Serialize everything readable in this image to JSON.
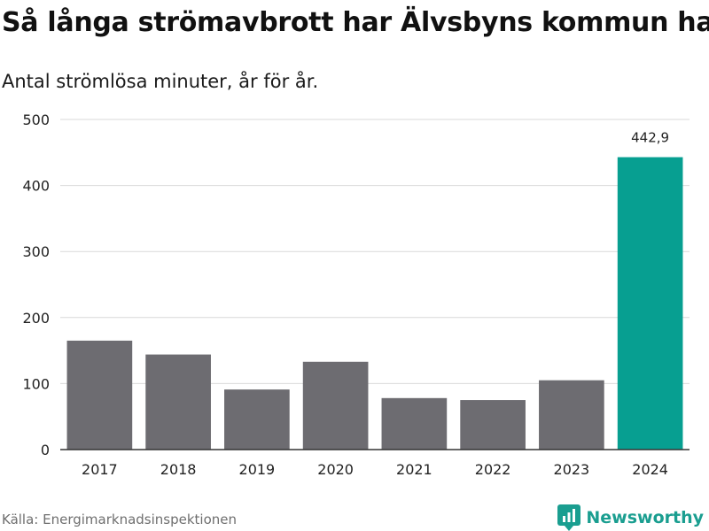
{
  "title": "Så långa strömavbrott har Älvsbyns kommun haft",
  "subtitle": "Antal strömlösa minuter, år för år.",
  "source": "Källa: Energimarknadsinspektionen",
  "brand": "Newsworthy",
  "colors": {
    "bar": "#6d6c71",
    "highlight": "#079f91",
    "grid": "#d9d9d9",
    "axis": "#333333",
    "brand": "#1a9e90"
  },
  "chart_data": {
    "type": "bar",
    "categories": [
      "2017",
      "2018",
      "2019",
      "2020",
      "2021",
      "2022",
      "2023",
      "2024"
    ],
    "values": [
      165,
      144,
      91,
      133,
      78,
      75,
      105,
      442.9
    ],
    "highlight_index": 7,
    "data_labels": [
      "",
      "",
      "",
      "",
      "",
      "",
      "",
      "442,9"
    ],
    "ylim": [
      0,
      500
    ],
    "yticks": [
      0,
      100,
      200,
      300,
      400,
      500
    ],
    "grid": true
  }
}
